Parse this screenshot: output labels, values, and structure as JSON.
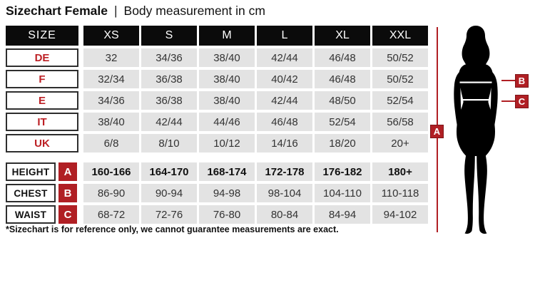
{
  "title": {
    "main": "Sizechart Female",
    "separator": "|",
    "subtitle": "Body measurement in cm"
  },
  "table": {
    "header": [
      "SIZE",
      "XS",
      "S",
      "M",
      "L",
      "XL",
      "XXL"
    ],
    "size_rows": [
      {
        "label": "DE",
        "values": [
          "32",
          "34/36",
          "38/40",
          "42/44",
          "46/48",
          "50/52"
        ]
      },
      {
        "label": "F",
        "values": [
          "32/34",
          "36/38",
          "38/40",
          "40/42",
          "46/48",
          "50/52"
        ]
      },
      {
        "label": "E",
        "values": [
          "34/36",
          "36/38",
          "38/40",
          "42/44",
          "48/50",
          "52/54"
        ]
      },
      {
        "label": "IT",
        "values": [
          "38/40",
          "42/44",
          "44/46",
          "46/48",
          "52/54",
          "56/58"
        ]
      },
      {
        "label": "UK",
        "values": [
          "6/8",
          "8/10",
          "10/12",
          "14/16",
          "18/20",
          "20+"
        ]
      }
    ],
    "measurement_rows": [
      {
        "label": "HEIGHT",
        "badge": "A",
        "bold": true,
        "values": [
          "160-166",
          "164-170",
          "168-174",
          "172-178",
          "176-182",
          "180+"
        ]
      },
      {
        "label": "CHEST",
        "badge": "B",
        "bold": false,
        "values": [
          "86-90",
          "90-94",
          "94-98",
          "98-104",
          "104-110",
          "110-118"
        ]
      },
      {
        "label": "WAIST",
        "badge": "C",
        "bold": false,
        "values": [
          "68-72",
          "72-76",
          "76-80",
          "80-84",
          "84-94",
          "94-102"
        ]
      }
    ]
  },
  "footnote": "*Sizechart is for reference only, we cannot guarantee measurements are exact.",
  "figure": {
    "markers": {
      "height": "A",
      "chest": "B",
      "waist": "C"
    }
  },
  "colors": {
    "accent_red": "#b01f24",
    "label_text_red": "#bc1f24",
    "cell_gray": "#e3e3e3",
    "header_black": "#0b0b0b"
  }
}
